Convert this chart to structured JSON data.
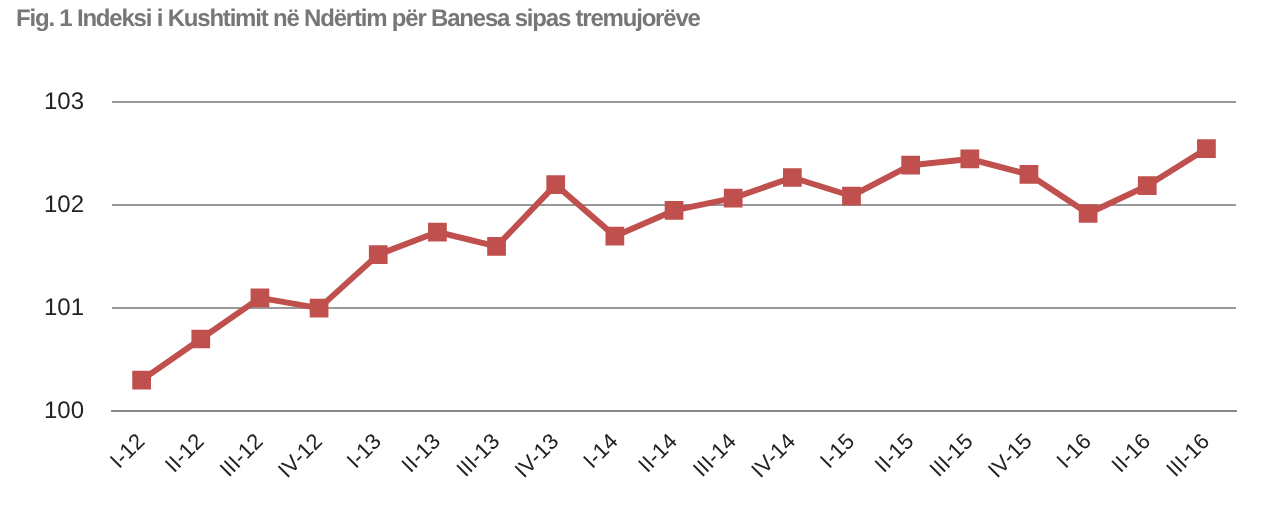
{
  "chart_data": {
    "type": "line",
    "title": "Fig. 1 Indeksi  i Kushtimit  në Ndërtim për Banesa sipas tremujorëve",
    "categories": [
      "I-12",
      "II-12",
      "III-12",
      "IV-12",
      "I-13",
      "II-13",
      "III-13",
      "IV-13",
      "I-14",
      "II-14",
      "III-14",
      "IV-14",
      "I-15",
      "II-15",
      "III-15",
      "IV-15",
      "I-16",
      "II-16",
      "III-16"
    ],
    "series": [
      {
        "color": "#c0504d",
        "values": [
          100.3,
          100.7,
          101.1,
          101.0,
          101.52,
          101.74,
          101.6,
          102.2,
          101.7,
          101.95,
          102.07,
          102.27,
          102.09,
          102.39,
          102.45,
          102.3,
          101.92,
          102.19,
          102.55
        ]
      }
    ],
    "ylim": [
      100,
      103
    ],
    "yticks": [
      100,
      101,
      102,
      103
    ],
    "grid": "y",
    "legend": false,
    "marker": "square",
    "line_style": "solid"
  }
}
